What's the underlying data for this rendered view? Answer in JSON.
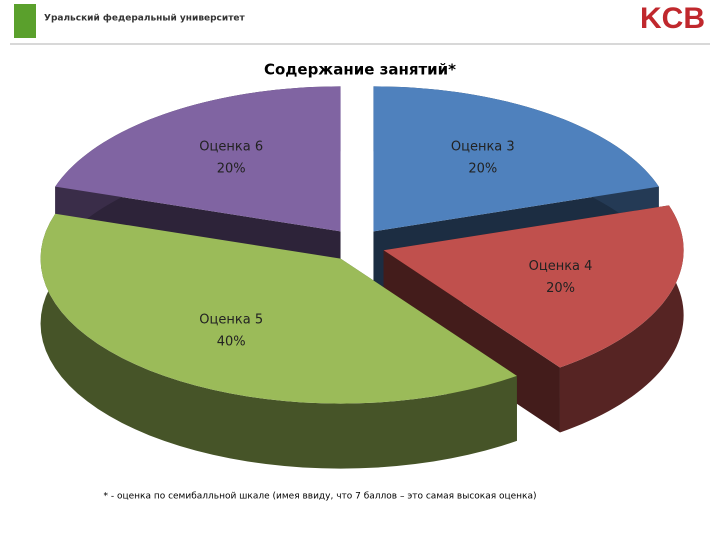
{
  "header": {
    "left_logo": "Уральский федеральный университет",
    "right_logo": "KCB"
  },
  "chart_data": {
    "type": "pie",
    "title": "Содержание занятий*",
    "categories": [
      "Оценка 3",
      "Оценка 4",
      "Оценка 5",
      "Оценка 6"
    ],
    "values": [
      20,
      20,
      40,
      20
    ],
    "value_labels": [
      "20%",
      "20%",
      "40%",
      "20%"
    ],
    "colors": [
      "#4f81bd",
      "#c0504d",
      "#9bbb59",
      "#8064a2"
    ],
    "footnote": "* - оценка по семибалльной шкале (имея ввиду, что 7 баллов – это самая высокая оценка)"
  }
}
